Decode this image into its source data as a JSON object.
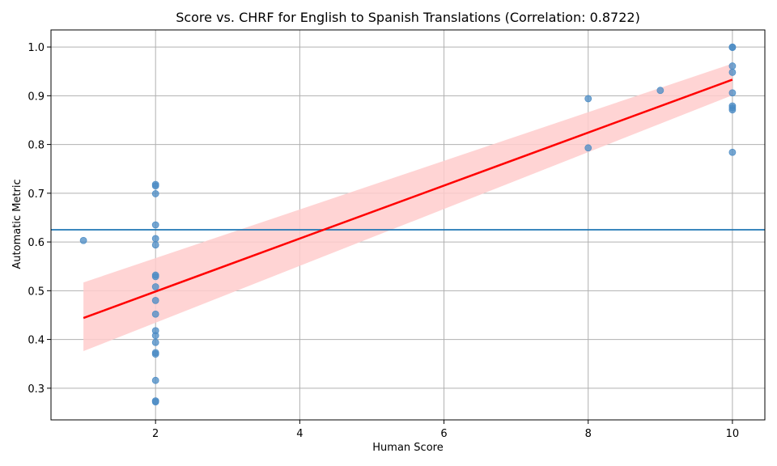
{
  "chart_data": {
    "type": "scatter",
    "title": "Score vs. CHRF for English to Spanish Translations (Correlation: 0.8722)",
    "xlabel": "Human Score",
    "ylabel": "Automatic Metric",
    "xlim": [
      0.55,
      10.45
    ],
    "ylim": [
      0.235,
      1.035
    ],
    "x_ticks": [
      2,
      4,
      6,
      8,
      10
    ],
    "y_ticks": [
      0.3,
      0.4,
      0.5,
      0.6,
      0.7,
      0.8,
      0.9,
      1.0
    ],
    "grid": true,
    "points": [
      {
        "x": 1,
        "y": 0.603
      },
      {
        "x": 2,
        "y": 0.718
      },
      {
        "x": 2,
        "y": 0.715
      },
      {
        "x": 2,
        "y": 0.699
      },
      {
        "x": 2,
        "y": 0.635
      },
      {
        "x": 2,
        "y": 0.607
      },
      {
        "x": 2,
        "y": 0.594
      },
      {
        "x": 2,
        "y": 0.532
      },
      {
        "x": 2,
        "y": 0.529
      },
      {
        "x": 2,
        "y": 0.508
      },
      {
        "x": 2,
        "y": 0.48
      },
      {
        "x": 2,
        "y": 0.452
      },
      {
        "x": 2,
        "y": 0.418
      },
      {
        "x": 2,
        "y": 0.408
      },
      {
        "x": 2,
        "y": 0.394
      },
      {
        "x": 2,
        "y": 0.373
      },
      {
        "x": 2,
        "y": 0.37
      },
      {
        "x": 2,
        "y": 0.316
      },
      {
        "x": 2,
        "y": 0.274
      },
      {
        "x": 2,
        "y": 0.272
      },
      {
        "x": 8,
        "y": 0.894
      },
      {
        "x": 8,
        "y": 0.793
      },
      {
        "x": 9,
        "y": 0.911
      },
      {
        "x": 10,
        "y": 1.0
      },
      {
        "x": 10,
        "y": 0.999
      },
      {
        "x": 10,
        "y": 0.961
      },
      {
        "x": 10,
        "y": 0.948
      },
      {
        "x": 10,
        "y": 0.906
      },
      {
        "x": 10,
        "y": 0.879
      },
      {
        "x": 10,
        "y": 0.875
      },
      {
        "x": 10,
        "y": 0.871
      },
      {
        "x": 10,
        "y": 0.784
      }
    ],
    "regression": {
      "x": [
        1,
        10
      ],
      "y": [
        0.444,
        0.933
      ],
      "ci_lower": [
        0.376,
        0.901
      ],
      "ci_upper": [
        0.517,
        0.966
      ]
    },
    "reference_line_y": 0.625,
    "colors": {
      "points": "#4a8bc4",
      "regression": "#ff0000",
      "ci_band": "#ffcccc",
      "reference_line": "#1f77b4",
      "grid": "#b0b0b0"
    }
  }
}
